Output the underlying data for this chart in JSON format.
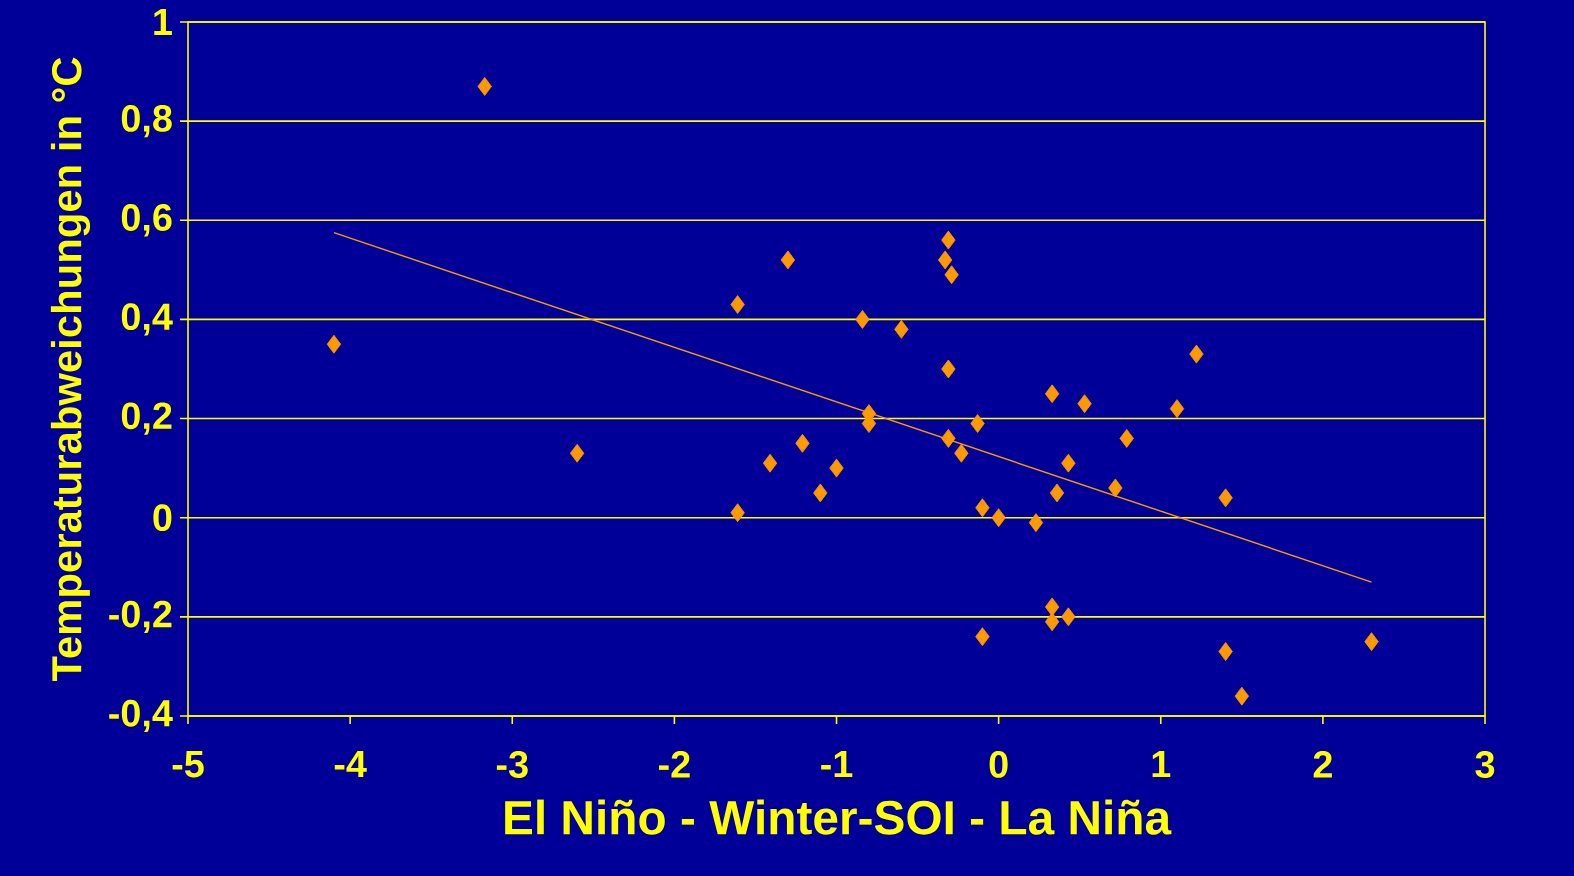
{
  "chart_data": {
    "type": "scatter",
    "xlabel": "El Niño - Winter-SOI - La Niña",
    "ylabel": "Temperaturabweichungen in °C",
    "xlim": [
      -5,
      3
    ],
    "xticks": [
      -5,
      -4,
      -3,
      -2,
      -1,
      0,
      1,
      2,
      3
    ],
    "ylim": [
      -0.4,
      1
    ],
    "yticks": [
      {
        "value": -0.4,
        "label": "-0,4"
      },
      {
        "value": -0.2,
        "label": "-0,2"
      },
      0,
      {
        "value": 0.2,
        "label": "0,2"
      },
      {
        "value": 0.4,
        "label": "0,4"
      },
      {
        "value": 0.6,
        "label": "0,6"
      },
      {
        "value": 0.8,
        "label": "0,8"
      },
      1
    ],
    "grid": "y",
    "marker": "diamond",
    "series": [
      {
        "color": "#ff9900",
        "x": [
          -4.1,
          -3.17,
          -2.6,
          -1.61,
          -1.61,
          -1.3,
          -1.41,
          -1.21,
          -1.1,
          -1.0,
          -0.84,
          -0.8,
          -0.8,
          -0.6,
          -0.31,
          -0.33,
          -0.29,
          -0.31,
          -0.31,
          -0.23,
          -0.13,
          -0.1,
          -0.1,
          0.0,
          0.23,
          0.33,
          0.36,
          0.43,
          0.33,
          0.33,
          0.43,
          0.53,
          0.72,
          0.79,
          1.1,
          1.22,
          1.4,
          1.4,
          1.5,
          2.3
        ],
        "values": [
          0.35,
          0.87,
          0.13,
          0.43,
          0.01,
          0.52,
          0.11,
          0.15,
          0.05,
          0.1,
          0.4,
          0.21,
          0.19,
          0.38,
          0.56,
          0.52,
          0.49,
          0.3,
          0.16,
          0.13,
          0.19,
          0.02,
          -0.24,
          0.0,
          -0.01,
          0.25,
          0.05,
          0.11,
          -0.18,
          -0.21,
          -0.2,
          0.23,
          0.06,
          0.16,
          0.22,
          0.33,
          0.04,
          -0.27,
          -0.36,
          -0.25
        ]
      },
      {
        "type": "line",
        "color": "#ff9900",
        "x": [
          -4.1,
          2.3
        ],
        "values": [
          0.575,
          -0.13
        ],
        "marker": "none"
      }
    ]
  }
}
